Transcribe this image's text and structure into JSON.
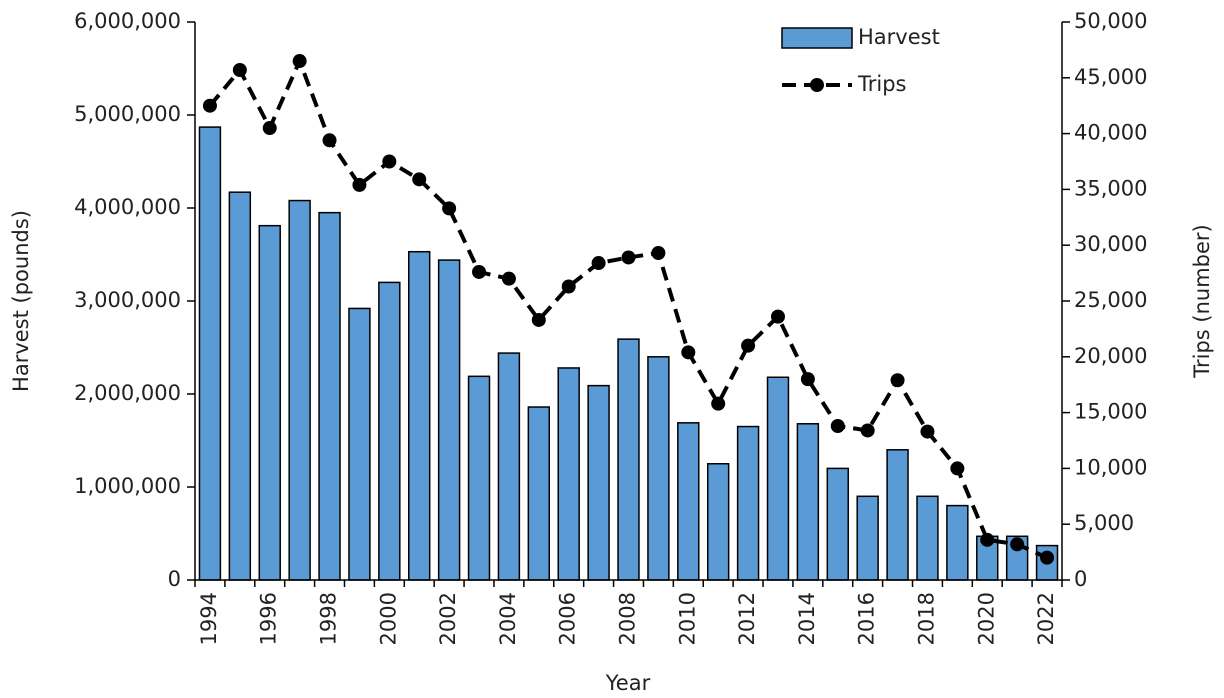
{
  "chart_data": {
    "type": "bar",
    "categories": [
      "1994",
      null,
      "1996",
      null,
      "1998",
      null,
      "2000",
      null,
      "2002",
      null,
      "2004",
      null,
      "2006",
      null,
      "2008",
      null,
      "2010",
      null,
      "2012",
      null,
      "2014",
      null,
      "2016",
      null,
      "2018",
      null,
      "2020",
      null,
      "2022"
    ],
    "x_label": "Year",
    "y_label": "Harvest (pounds)",
    "y2_label": "Trips (number)",
    "series": [
      {
        "name": "Harvest",
        "type": "bar",
        "color": "#5b9bd5",
        "axis": "y",
        "values": [
          4870000,
          4170000,
          3810000,
          4080000,
          3950000,
          2920000,
          3200000,
          3530000,
          3440000,
          2190000,
          2440000,
          1860000,
          2280000,
          2090000,
          2590000,
          2400000,
          1690000,
          1250000,
          1650000,
          2180000,
          1680000,
          1200000,
          900000,
          1400000,
          900000,
          800000,
          470000,
          470000,
          370000
        ]
      },
      {
        "name": "Trips",
        "type": "line",
        "color": "#000000",
        "axis": "y2",
        "values": [
          42500,
          45700,
          40500,
          46500,
          39400,
          35400,
          37500,
          35900,
          33300,
          27600,
          27000,
          23300,
          26300,
          28400,
          28900,
          29300,
          20400,
          15800,
          21000,
          23600,
          18000,
          13800,
          13400,
          17900,
          13300,
          10000,
          3600,
          3200,
          2000
        ]
      }
    ],
    "ylim": [
      0,
      6000000
    ],
    "yticks": [
      0,
      {
        "value": 1000000,
        "label": "1,000,000"
      },
      {
        "value": 2000000,
        "label": "2,000,000"
      },
      {
        "value": 3000000,
        "label": "3,000,000"
      },
      {
        "value": 4000000,
        "label": "4,000,000"
      },
      {
        "value": 5000000,
        "label": "5,000,000"
      },
      {
        "value": 6000000,
        "label": "6,000,000"
      }
    ],
    "y2lim": [
      0,
      50000
    ],
    "y2ticks": [
      0,
      {
        "value": 5000,
        "label": "5,000"
      },
      {
        "value": 10000,
        "label": "10,000"
      },
      {
        "value": 15000,
        "label": "15,000"
      },
      {
        "value": 20000,
        "label": "20,000"
      },
      {
        "value": 25000,
        "label": "25,000"
      },
      {
        "value": 30000,
        "label": "30,000"
      },
      {
        "value": 35000,
        "label": "35,000"
      },
      {
        "value": 40000,
        "label": "40,000"
      },
      {
        "value": 45000,
        "label": "45,000"
      },
      {
        "value": 50000,
        "label": "50,000"
      }
    ],
    "legend": "top-right"
  }
}
